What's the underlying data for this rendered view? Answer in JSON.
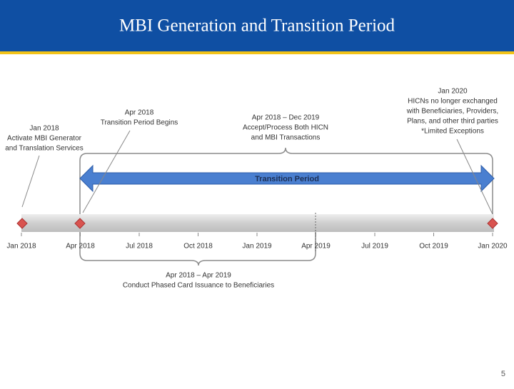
{
  "header": {
    "title": "MBI Generation and Transition Period"
  },
  "timeline": {
    "labels": [
      "Jan 2018",
      "Apr 2018",
      "Jul 2018",
      "Oct 2018",
      "Jan 2019",
      "Apr 2019",
      "Jul 2019",
      "Oct 2019",
      "Jan 2020"
    ]
  },
  "transition": {
    "label": "Transition Period"
  },
  "callouts": [
    {
      "lines": [
        "Jan 2018",
        "Activate MBI Generator",
        "and Translation Services"
      ]
    },
    {
      "lines": [
        "Apr 2018",
        "Transition Period Begins"
      ]
    },
    {
      "lines": [
        "Apr 2018 – Dec 2019",
        "Accept/Process Both HICN",
        "and MBI Transactions"
      ]
    },
    {
      "lines": [
        "Jan 2020",
        "HICNs no longer exchanged",
        "with Beneficiaries, Providers,",
        "Plans, and other third parties",
        "*Limited Exceptions"
      ]
    },
    {
      "lines": [
        "Apr 2018 – Apr 2019",
        "Conduct Phased Card Issuance to Beneficiaries"
      ]
    }
  ],
  "footer": {
    "page_number": "5"
  }
}
